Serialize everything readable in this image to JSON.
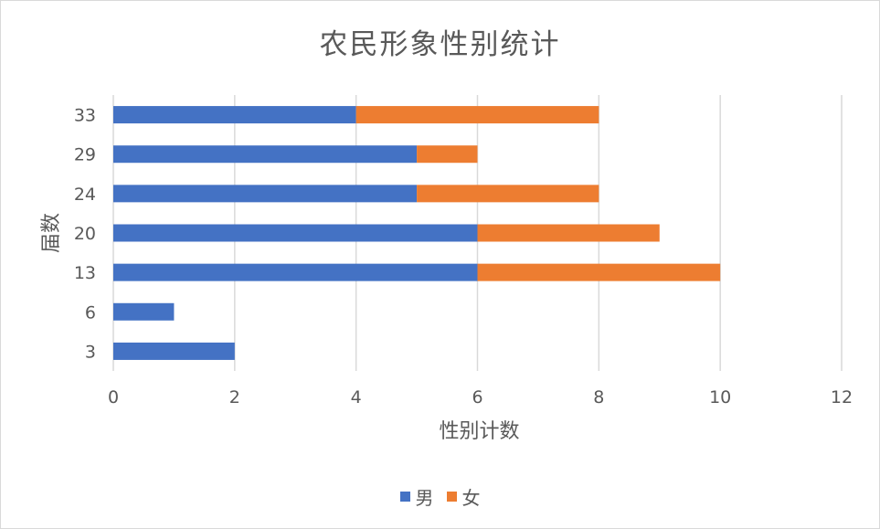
{
  "chart_data": {
    "type": "bar",
    "orientation": "horizontal",
    "stacked": true,
    "title": "农民形象性别统计",
    "xlabel": "性别计数",
    "ylabel": "届数",
    "categories": [
      "3",
      "6",
      "13",
      "20",
      "24",
      "29",
      "33"
    ],
    "series": [
      {
        "name": "男",
        "color": "#4472C4",
        "values": [
          2,
          1,
          6,
          6,
          5,
          5,
          4
        ]
      },
      {
        "name": "女",
        "color": "#ED7D31",
        "values": [
          0,
          0,
          4,
          3,
          3,
          1,
          4
        ]
      }
    ],
    "xlim": [
      0,
      12
    ],
    "xticks": [
      "0",
      "2",
      "4",
      "6",
      "8",
      "10",
      "12"
    ],
    "grid": "vertical",
    "legend_position": "bottom"
  }
}
